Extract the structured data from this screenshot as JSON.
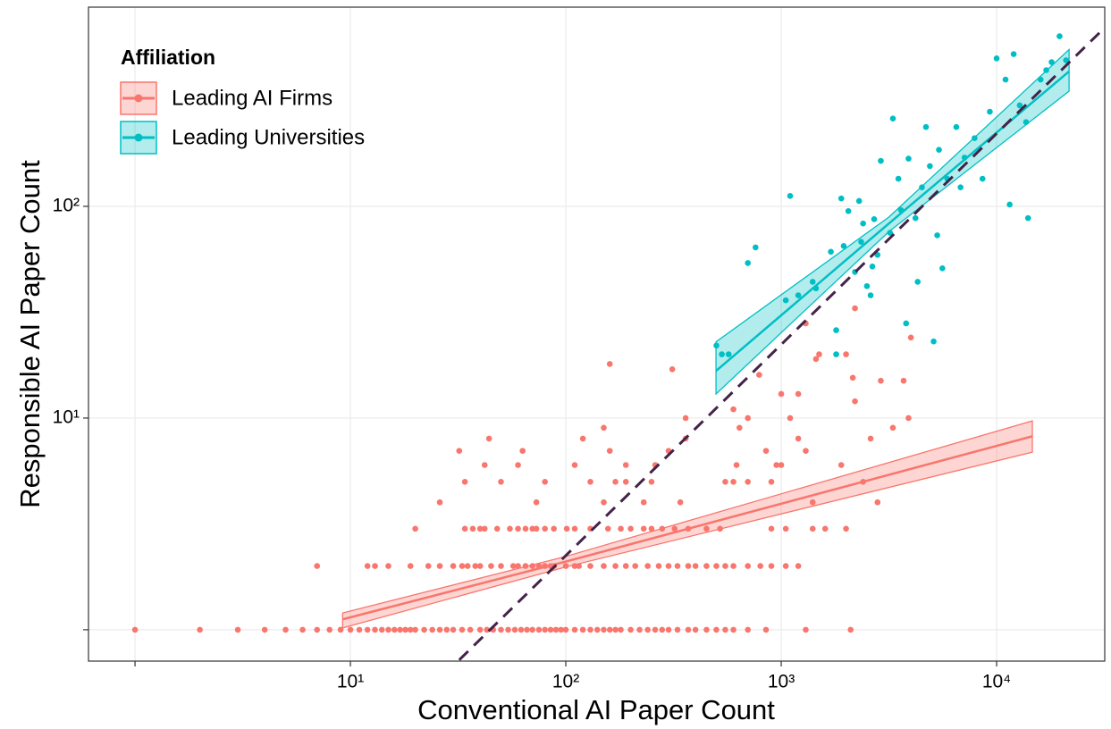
{
  "chart_data": {
    "type": "scatter",
    "xlabel": "Conventional AI Paper Count",
    "ylabel": "Responsible AI Paper Count",
    "log_x": true,
    "log_y": true,
    "grid": true,
    "xlim": [
      0.608,
      31770
    ],
    "ylim": [
      0.711,
      873
    ],
    "xticks": [
      {
        "value": 1,
        "label": null
      },
      {
        "value": 10,
        "label": "10¹"
      },
      {
        "value": 100,
        "label": "10²"
      },
      {
        "value": 1000,
        "label": "10³"
      },
      {
        "value": 10000,
        "label": "10⁴"
      }
    ],
    "yticks": [
      {
        "value": 1,
        "label": null
      },
      {
        "value": 10,
        "label": "10¹"
      },
      {
        "value": 100,
        "label": "10²"
      }
    ],
    "legend": {
      "title": "Affiliation",
      "corner": "top-left"
    },
    "reference_line": {
      "color": "#432348",
      "x": [
        32,
        30000
      ],
      "y": [
        0.72,
        660
      ]
    },
    "series": [
      {
        "name": "Leading AI Firms",
        "color": "#F8766D",
        "x": [
          1,
          2,
          3,
          4,
          5,
          6,
          7,
          8,
          9,
          10,
          11,
          12,
          13,
          14,
          15,
          16,
          17,
          18,
          19,
          20,
          22,
          24,
          26,
          28,
          30,
          33,
          36,
          40,
          43,
          46,
          50,
          54,
          58,
          62,
          66,
          70,
          75,
          80,
          85,
          90,
          95,
          100,
          110,
          120,
          130,
          140,
          150,
          160,
          170,
          180,
          200,
          220,
          240,
          260,
          280,
          300,
          330,
          370,
          400,
          450,
          500,
          550,
          600,
          700,
          850,
          1300,
          2100,
          7,
          12,
          13,
          15,
          19,
          23,
          26,
          30,
          33,
          35,
          38,
          40,
          45,
          50,
          57,
          60,
          65,
          70,
          75,
          80,
          85,
          88,
          100,
          110,
          115,
          130,
          150,
          170,
          190,
          210,
          240,
          270,
          300,
          330,
          370,
          400,
          450,
          500,
          550,
          600,
          700,
          800,
          900,
          1050,
          1200,
          20,
          34,
          37,
          40,
          42,
          48,
          55,
          60,
          65,
          70,
          73,
          80,
          88,
          101,
          110,
          130,
          157,
          180,
          200,
          230,
          250,
          280,
          320,
          370,
          450,
          520,
          900,
          1050,
          1400,
          1600,
          2000,
          26,
          73,
          150,
          230,
          340,
          1400,
          2800,
          34,
          50,
          80,
          130,
          170,
          190,
          250,
          550,
          600,
          700,
          900,
          2400,
          42,
          60,
          110,
          190,
          260,
          620,
          950,
          1000,
          1900,
          32,
          63,
          160,
          300,
          850,
          1300,
          44,
          120,
          360,
          1200,
          2600,
          160,
          312,
          360,
          790,
          1300,
          1450,
          1500,
          2000,
          2200,
          2150,
          2900,
          3700,
          4000,
          3900,
          3300,
          2200,
          1200,
          1000,
          600,
          640,
          1100,
          150,
          700
        ],
        "values": [
          1,
          1,
          1,
          1,
          1,
          1,
          1,
          1,
          1,
          1,
          1,
          1,
          1,
          1,
          1,
          1,
          1,
          1,
          1,
          1,
          1,
          1,
          1,
          1,
          1,
          1,
          1,
          1,
          1,
          1,
          1,
          1,
          1,
          1,
          1,
          1,
          1,
          1,
          1,
          1,
          1,
          1,
          1,
          1,
          1,
          1,
          1,
          1,
          1,
          1,
          1,
          1,
          1,
          1,
          1,
          1,
          1,
          1,
          1,
          1,
          1,
          1,
          1,
          1,
          1,
          1,
          1,
          2,
          2,
          2,
          2,
          2,
          2,
          2,
          2,
          2,
          2,
          2,
          2,
          2,
          2,
          2,
          2,
          2,
          2,
          2,
          2,
          2,
          2,
          2,
          2,
          2,
          2,
          2,
          2,
          2,
          2,
          2,
          2,
          2,
          2,
          2,
          2,
          2,
          2,
          2,
          2,
          2,
          2,
          2,
          2,
          2,
          3,
          3,
          3,
          3,
          3,
          3,
          3,
          3,
          3,
          3,
          3,
          3,
          3,
          3,
          3,
          3,
          3,
          3,
          3,
          3,
          3,
          3,
          3,
          3,
          3,
          3,
          3,
          3,
          3,
          3,
          3,
          4,
          4,
          4,
          4,
          4,
          4,
          4,
          5,
          5,
          5,
          5,
          5,
          5,
          5,
          5,
          5,
          5,
          5,
          5,
          6,
          6,
          6,
          6,
          6,
          6,
          6,
          6,
          6,
          7,
          7,
          7,
          7,
          7,
          7,
          8,
          8,
          8,
          8,
          8,
          18,
          17,
          10,
          16,
          28,
          19,
          20,
          20,
          12,
          15.5,
          15,
          15,
          24,
          10,
          9,
          33,
          13,
          13,
          11,
          9,
          10,
          9,
          10
        ],
        "fit": {
          "x": [
            9.2,
            100,
            14650
          ],
          "y": [
            1.12,
            2.1,
            8.2
          ],
          "lower": [
            1.02,
            1.98,
            6.9
          ],
          "upper": [
            1.2,
            2.22,
            9.7
          ]
        }
      },
      {
        "name": "Leading Universities",
        "color": "#00BFC4",
        "x": [
          500,
          530,
          570,
          700,
          760,
          1100,
          1050,
          1200,
          1400,
          1450,
          1700,
          1800,
          1800,
          1900,
          1950,
          2050,
          2200,
          2300,
          2350,
          2400,
          2500,
          2600,
          2650,
          2700,
          2800,
          2900,
          3200,
          3300,
          3500,
          3600,
          3800,
          3900,
          4200,
          4300,
          4500,
          4700,
          4900,
          5100,
          5300,
          5400,
          5600,
          5900,
          6500,
          6800,
          7100,
          7900,
          8600,
          9300,
          10000,
          11000,
          12000,
          11500,
          12800,
          14000,
          16000,
          18000,
          19600,
          21000,
          13700,
          17000
        ],
        "values": [
          22,
          20,
          20,
          54,
          64,
          112,
          36,
          38,
          44,
          41,
          61,
          26,
          20,
          109,
          65,
          95,
          49,
          106,
          68,
          83,
          42,
          38,
          52,
          87,
          59,
          164,
          75,
          260,
          135,
          96,
          28,
          168,
          88,
          44,
          123,
          237,
          155,
          23,
          73,
          185,
          51,
          135,
          237,
          123,
          170,
          210,
          135,
          280,
          500,
          397,
          524,
          102,
          300,
          88,
          397,
          480,
          636,
          490,
          250,
          440
        ],
        "fit": {
          "x": [
            498,
            3162,
            21700
          ],
          "y": [
            16.7,
            83,
            434
          ],
          "lower": [
            13.0,
            76,
            350
          ],
          "upper": [
            22.9,
            89,
            550
          ]
        }
      }
    ]
  }
}
